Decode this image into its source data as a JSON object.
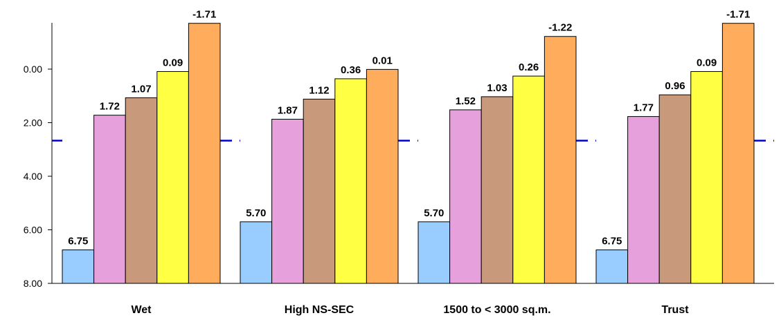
{
  "chart_data": {
    "type": "bar",
    "y_reversed": true,
    "ylim": [
      8.0,
      -1.71
    ],
    "y_ticks": [
      "0.00",
      "2.00",
      "4.00",
      "6.00",
      "8.00"
    ],
    "grid": false,
    "categories": [
      "Wet",
      "High NS-SEC",
      "1500 to < 3000 sq.m.",
      "Trust"
    ],
    "series": [
      {
        "values": [
          6.75,
          5.7,
          5.7,
          6.75
        ],
        "labels": [
          "6.75",
          "5.70",
          "5.70",
          "6.75"
        ],
        "color": "#99ccff"
      },
      {
        "values": [
          1.72,
          1.87,
          1.52,
          1.77
        ],
        "labels": [
          "1.72",
          "1.87",
          "1.52",
          "1.77"
        ],
        "color": "#e6a0dc"
      },
      {
        "values": [
          1.07,
          1.12,
          1.03,
          0.96
        ],
        "labels": [
          "1.07",
          "1.12",
          "1.03",
          "0.96"
        ],
        "color": "#c8997a"
      },
      {
        "values": [
          0.09,
          0.36,
          0.26,
          0.09
        ],
        "labels": [
          "0.09",
          "0.36",
          "0.26",
          "0.09"
        ],
        "color": "#ffff44"
      },
      {
        "values": [
          -1.71,
          0.01,
          -1.22,
          -1.71
        ],
        "labels": [
          "-1.71",
          "0.01",
          "-1.22",
          "-1.71"
        ],
        "color": "#ffad5c"
      }
    ],
    "reference_line": {
      "value": 2.67,
      "color": "#0000cc",
      "style": "dashed"
    }
  }
}
